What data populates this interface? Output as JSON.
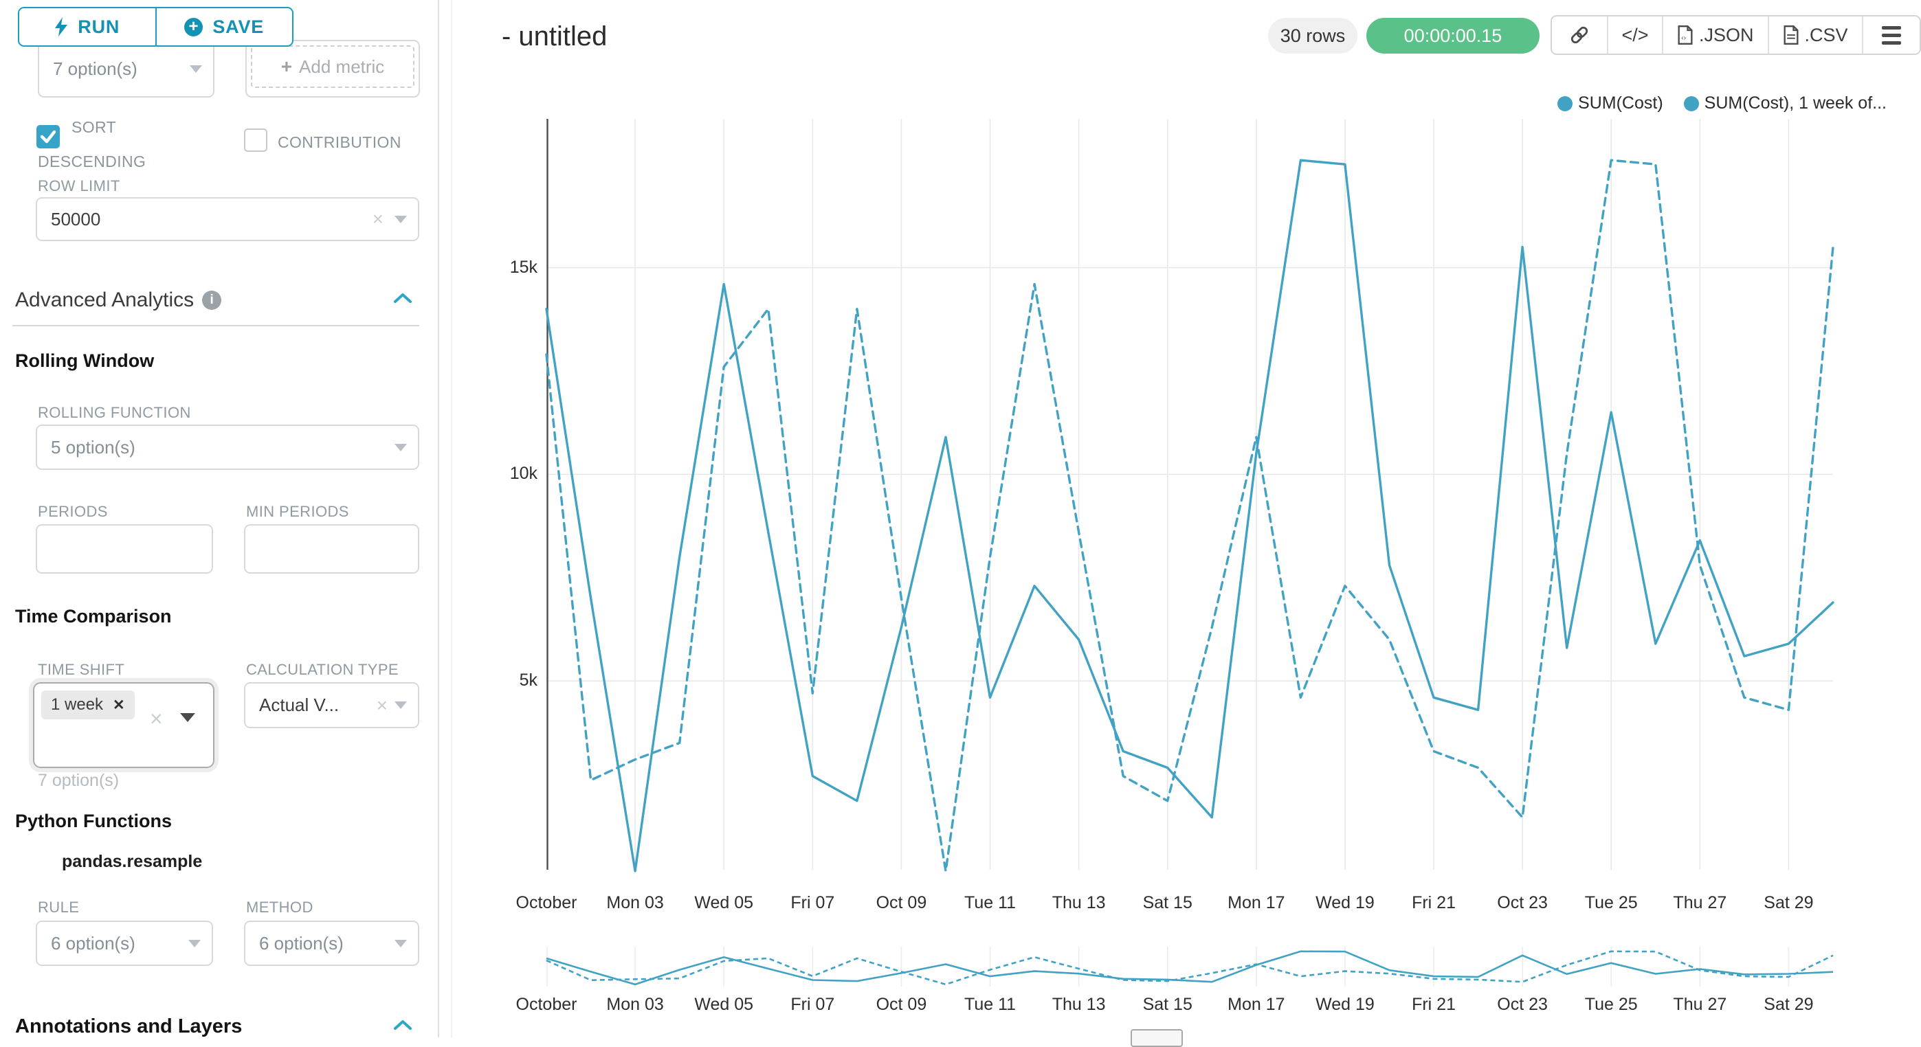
{
  "sidebar": {
    "run_label": "RUN",
    "save_label": "SAVE",
    "metric_select_value": "7 option(s)",
    "add_metric_plus": "+",
    "add_metric_label": "Add metric",
    "sort_label_line1": "SORT",
    "sort_label_line2": "DESCENDING",
    "contribution_label": "CONTRIBUTION",
    "row_limit_label": "ROW LIMIT",
    "row_limit_value": "50000",
    "advanced_analytics": "Advanced Analytics",
    "rolling_window": "Rolling Window",
    "rolling_function_label": "ROLLING FUNCTION",
    "rolling_function_value": "5 option(s)",
    "periods_label": "PERIODS",
    "min_periods_label": "MIN PERIODS",
    "time_comparison": "Time Comparison",
    "time_shift_label": "TIME SHIFT",
    "time_shift_tag": "1 week",
    "time_shift_tag_close": "✕",
    "time_shift_helper": "7 option(s)",
    "calculation_type_label": "CALCULATION TYPE",
    "calculation_type_value": "Actual V...",
    "python_functions": "Python Functions",
    "pandas_resample": "pandas.resample",
    "rule_label": "RULE",
    "rule_value": "6 option(s)",
    "method_label": "METHOD",
    "method_value": "6 option(s)",
    "annotations": "Annotations and Layers"
  },
  "header": {
    "title": "- untitled",
    "rows_badge": "30 rows",
    "timer": "00:00:00.15",
    "code_label": "</>",
    "json_label": ".JSON",
    "csv_label": ".CSV"
  },
  "legend": {
    "series1": "SUM(Cost)",
    "series2": "SUM(Cost), 1 week of..."
  },
  "chart_data": {
    "type": "line",
    "title": "- untitled",
    "x_ticks": [
      "October",
      "Mon 03",
      "Wed 05",
      "Fri 07",
      "Oct 09",
      "Tue 11",
      "Thu 13",
      "Sat 15",
      "Mon 17",
      "Wed 19",
      "Fri 21",
      "Oct 23",
      "Tue 25",
      "Thu 27",
      "Sat 29"
    ],
    "x_days": 30,
    "y_ticks": [
      {
        "label": "15k",
        "value": 15000
      },
      {
        "label": "10k",
        "value": 10000
      },
      {
        "label": "5k",
        "value": 5000
      }
    ],
    "ylim": [
      0,
      18600
    ],
    "grid": true,
    "legend_position": "top-right",
    "color": "#41a2c4",
    "series": [
      {
        "name": "SUM(Cost)",
        "style": "solid",
        "values": [
          14000,
          7000,
          400,
          8000,
          14600,
          8600,
          2700,
          2100,
          6300,
          10900,
          4600,
          7300,
          6000,
          3300,
          2900,
          1700,
          10500,
          17600,
          17500,
          7800,
          4600,
          4300,
          15500,
          5800,
          11500,
          5900,
          8400,
          5600,
          5900,
          6900
        ]
      },
      {
        "name": "SUM(Cost), 1 week offset",
        "style": "dashed",
        "values": [
          12900,
          2600,
          3100,
          3500,
          12600,
          14000,
          4700,
          14000,
          7000,
          400,
          8000,
          14600,
          8600,
          2700,
          2100,
          6300,
          10900,
          4600,
          7300,
          6000,
          3300,
          2900,
          1700,
          10500,
          17600,
          17500,
          7800,
          4600,
          4300,
          15500
        ]
      }
    ]
  }
}
